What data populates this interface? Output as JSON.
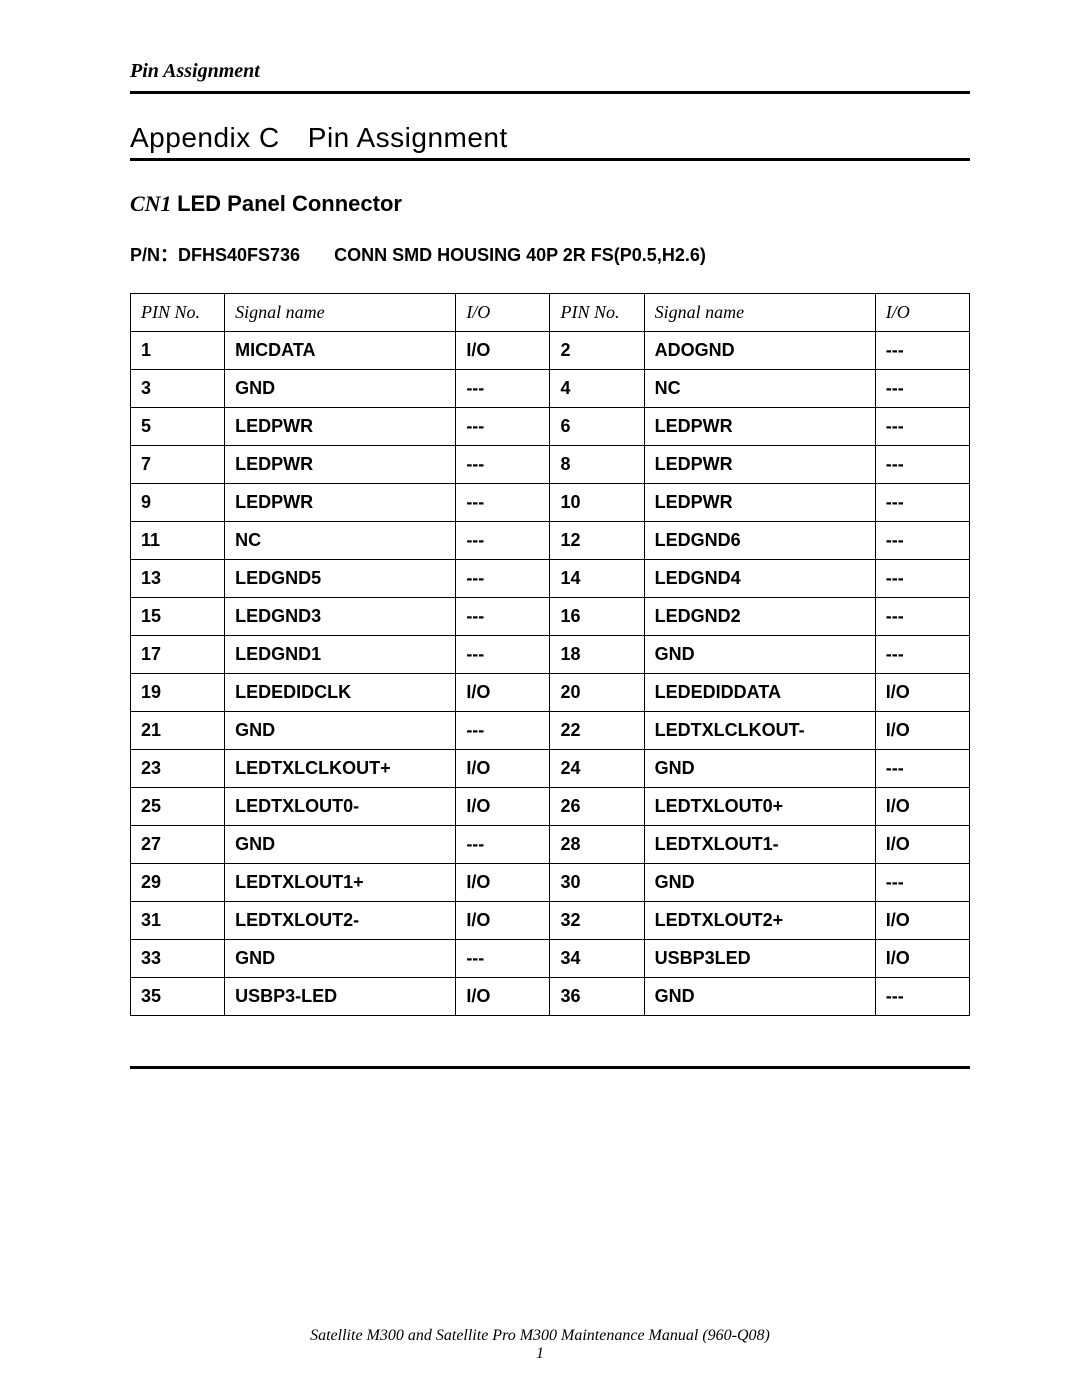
{
  "header": {
    "running_head": "Pin Assignment",
    "title_prefix": "Appendix C",
    "title_main": "Pin Assignment"
  },
  "section": {
    "connector_id": "CN1",
    "connector_name": "LED Panel Connector",
    "pn_label": "P/N：",
    "pn_value": "DFHS40FS736",
    "conn_desc": "CONN SMD HOUSING 40P 2R FS(P0.5,H2.6)"
  },
  "table": {
    "headers": {
      "pin_no": "PIN No.",
      "signal": "Signal name",
      "io": "I/O"
    },
    "rows": [
      {
        "l_pin": "1",
        "l_sig": "MICDATA",
        "l_io": "I/O",
        "r_pin": "2",
        "r_sig": "ADOGND",
        "r_io": "---"
      },
      {
        "l_pin": "3",
        "l_sig": "GND",
        "l_io": "---",
        "r_pin": "4",
        "r_sig": "NC",
        "r_io": "---"
      },
      {
        "l_pin": "5",
        "l_sig": "LEDPWR",
        "l_io": "---",
        "r_pin": "6",
        "r_sig": "LEDPWR",
        "r_io": "---"
      },
      {
        "l_pin": "7",
        "l_sig": "LEDPWR",
        "l_io": "---",
        "r_pin": "8",
        "r_sig": "LEDPWR",
        "r_io": "---"
      },
      {
        "l_pin": "9",
        "l_sig": "LEDPWR",
        "l_io": "---",
        "r_pin": "10",
        "r_sig": "LEDPWR",
        "r_io": "---"
      },
      {
        "l_pin": "11",
        "l_sig": "NC",
        "l_io": "---",
        "r_pin": "12",
        "r_sig": "LEDGND6",
        "r_io": "---"
      },
      {
        "l_pin": "13",
        "l_sig": "LEDGND5",
        "l_io": "---",
        "r_pin": "14",
        "r_sig": "LEDGND4",
        "r_io": "---"
      },
      {
        "l_pin": "15",
        "l_sig": "LEDGND3",
        "l_io": "---",
        "r_pin": "16",
        "r_sig": "LEDGND2",
        "r_io": "---"
      },
      {
        "l_pin": "17",
        "l_sig": "LEDGND1",
        "l_io": "---",
        "r_pin": "18",
        "r_sig": "GND",
        "r_io": "---"
      },
      {
        "l_pin": "19",
        "l_sig": "LEDEDIDCLK",
        "l_io": "I/O",
        "r_pin": "20",
        "r_sig": "LEDEDIDDATA",
        "r_io": "I/O"
      },
      {
        "l_pin": "21",
        "l_sig": "GND",
        "l_io": "---",
        "r_pin": "22",
        "r_sig": "LEDTXLCLKOUT-",
        "r_io": "I/O"
      },
      {
        "l_pin": "23",
        "l_sig": "LEDTXLCLKOUT+",
        "l_io": "I/O",
        "r_pin": "24",
        "r_sig": "GND",
        "r_io": "---"
      },
      {
        "l_pin": "25",
        "l_sig": "LEDTXLOUT0-",
        "l_io": "I/O",
        "r_pin": "26",
        "r_sig": "LEDTXLOUT0+",
        "r_io": "I/O"
      },
      {
        "l_pin": "27",
        "l_sig": "GND",
        "l_io": "---",
        "r_pin": "28",
        "r_sig": "LEDTXLOUT1-",
        "r_io": "I/O"
      },
      {
        "l_pin": "29",
        "l_sig": "LEDTXLOUT1+",
        "l_io": "I/O",
        "r_pin": "30",
        "r_sig": "GND",
        "r_io": "---"
      },
      {
        "l_pin": "31",
        "l_sig": "LEDTXLOUT2-",
        "l_io": "I/O",
        "r_pin": "32",
        "r_sig": "LEDTXLOUT2+",
        "r_io": "I/O"
      },
      {
        "l_pin": "33",
        "l_sig": "GND",
        "l_io": "---",
        "r_pin": "34",
        "r_sig": "USBP3LED",
        "r_io": "I/O"
      },
      {
        "l_pin": "35",
        "l_sig": "USBP3-LED",
        "l_io": "I/O",
        "r_pin": "36",
        "r_sig": "GND",
        "r_io": "---"
      }
    ]
  },
  "footer": {
    "text": "Satellite M300 and Satellite Pro M300 Maintenance Manual (960-Q08)",
    "page_num": "1"
  }
}
